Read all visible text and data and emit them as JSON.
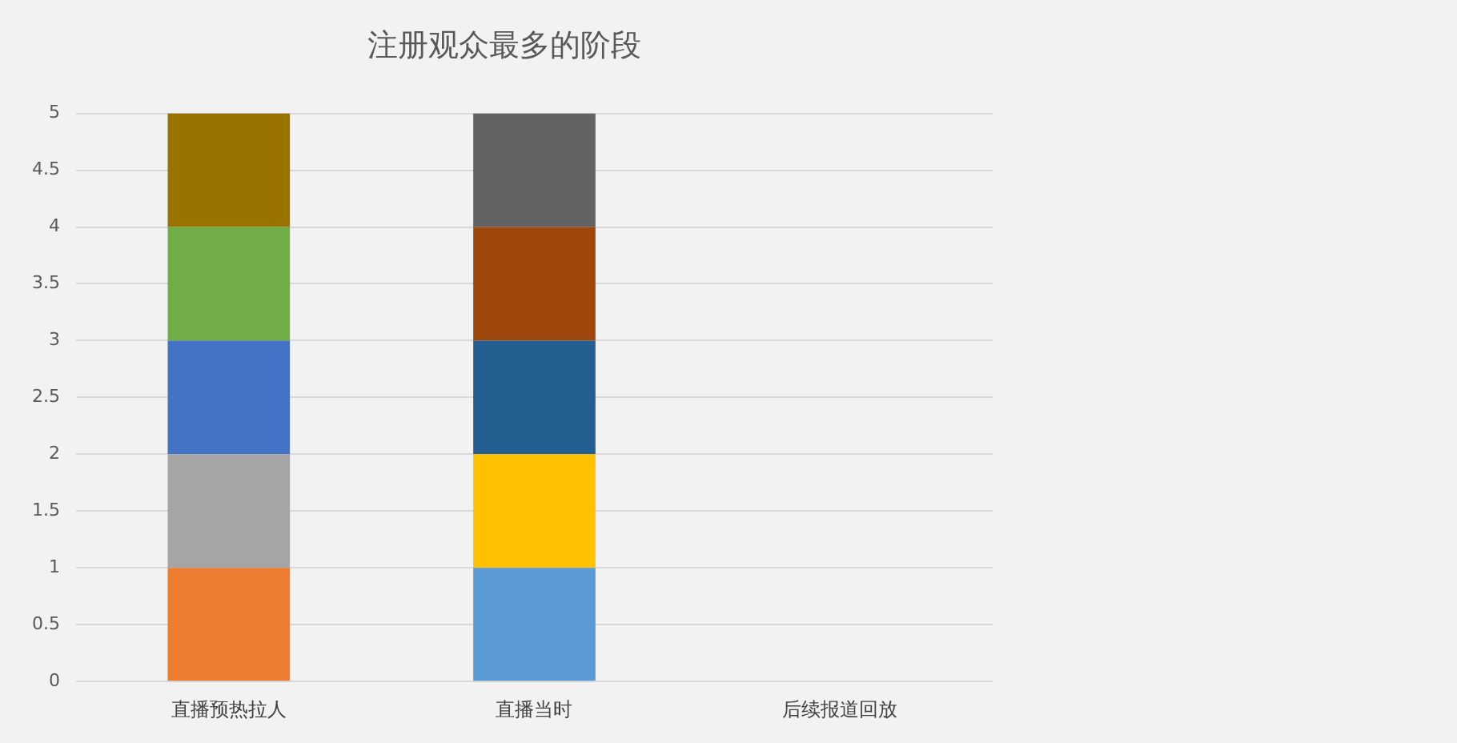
{
  "chart_data": {
    "type": "bar",
    "title": "注册观众最多的阶段",
    "categories": [
      "直播预热拉人",
      "直播当时",
      "后续报道回放"
    ],
    "stacked": true,
    "ylim": [
      0,
      5
    ],
    "yticks": [
      0,
      0.5,
      1,
      1.5,
      2,
      2.5,
      3,
      3.5,
      4,
      4.5,
      5
    ],
    "grid": "y",
    "legend": false,
    "series": [
      {
        "color": "#5b9bd5",
        "values": [
          null,
          1,
          null
        ]
      },
      {
        "color": "#ed7d31",
        "values": [
          1,
          null,
          null
        ]
      },
      {
        "color": "#a5a5a5",
        "values": [
          1,
          null,
          null
        ]
      },
      {
        "color": "#ffc000",
        "values": [
          null,
          1,
          null
        ]
      },
      {
        "color": "#4472c4",
        "values": [
          1,
          null,
          null
        ]
      },
      {
        "color": "#70ad47",
        "values": [
          1,
          null,
          null
        ]
      },
      {
        "color": "#255e91",
        "values": [
          null,
          1,
          null
        ]
      },
      {
        "color": "#9e480e",
        "values": [
          null,
          1,
          null
        ]
      },
      {
        "color": "#636363",
        "values": [
          null,
          1,
          null
        ]
      },
      {
        "color": "#997300",
        "values": [
          1,
          null,
          null
        ]
      }
    ]
  }
}
